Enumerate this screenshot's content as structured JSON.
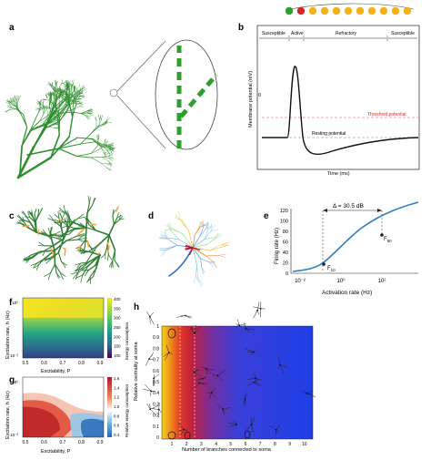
{
  "panels": {
    "a": "a",
    "b": "b",
    "c": "c",
    "d": "d",
    "e": "e",
    "f": "f",
    "g": "g",
    "h": "h"
  },
  "panel_b": {
    "phases": [
      "Susceptible",
      "Active",
      "Refractory",
      "Susceptible"
    ],
    "ylabel": "Membrane potential (mV)",
    "xlabel": "Time (ms)",
    "zero_tick": "0",
    "threshold_label": "Threshold potential",
    "resting_label": "Resting potential",
    "colors": {
      "threshold": "#e05050",
      "resting": "#888888",
      "trace": "#111111"
    },
    "chain_colors": [
      "#2ca02c",
      "#d62728",
      "#f2b21a"
    ]
  },
  "panel_e": {
    "delta_label": "Δ = 30.5 dB",
    "ylabel": "Firing rate (Hz)",
    "xlabel": "Activation rate (Hz)",
    "y_ticks": [
      "0",
      "20",
      "40",
      "60",
      "80",
      "100",
      "120"
    ],
    "x_ticks": [
      "10⁻²",
      "10⁰",
      "10²"
    ],
    "f10": "F",
    "f10_sub": "10",
    "f90": "F",
    "f90_sub": "90"
  },
  "panel_f": {
    "ylabel": "Excitation rate, h (Hz)",
    "xlabel": "Excitability, P",
    "x_ticks": [
      "0.5",
      "0.6",
      "0.7",
      "0.8",
      "0.9"
    ],
    "y_ticks": [
      "10⁰",
      "10⁻²"
    ],
    "cbar_label": "Energy consumption",
    "cbar_ticks": [
      "400",
      "350",
      "300",
      "250",
      "200",
      "150",
      "100"
    ]
  },
  "panel_g": {
    "ylabel": "Excitation rate, h (Hz)",
    "xlabel": "Excitability, P",
    "x_ticks": [
      "0.5",
      "0.6",
      "0.7",
      "0.8",
      "0.9"
    ],
    "y_ticks": [
      "10⁰",
      "10⁻²"
    ],
    "cbar_label": "Relative energy consumption",
    "cbar_ticks": [
      "1.6",
      "1.4",
      "1.2",
      "1.0",
      "0.8",
      "0.6",
      "0.4"
    ]
  },
  "panel_h": {
    "ylabel": "Relative centrality at soma",
    "xlabel": "Number of branches connected to soma",
    "x_ticks": [
      "1",
      "2",
      "3",
      "4",
      "5",
      "6",
      "7",
      "8",
      "9",
      "10"
    ],
    "y_ticks": [
      "1",
      "0.9",
      "0.8",
      "0.7",
      "0.6",
      "0.5",
      "0.4",
      "0.3",
      "0.2",
      "0.1",
      "0"
    ]
  }
}
